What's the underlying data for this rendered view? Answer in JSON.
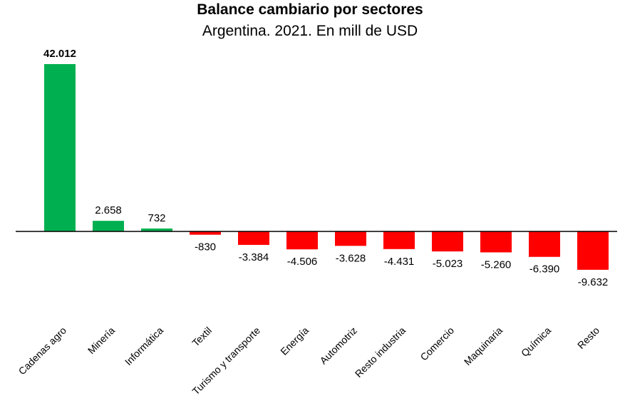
{
  "chart_data": {
    "type": "bar",
    "title": "Balance cambiario por sectores",
    "subtitle": "Argentina. 2021. En mill de USD",
    "categories": [
      "Cadenas agro",
      "Minería",
      "Informática",
      "Textil",
      "Turismo y transporte",
      "Energía",
      "Automotriz",
      "Resto industria",
      "Comercio",
      "Maquinaria",
      "Química",
      "Resto"
    ],
    "values": [
      42012,
      2658,
      732,
      -830,
      -3384,
      -4506,
      -3628,
      -4431,
      -5023,
      -5260,
      -6390,
      -9632
    ],
    "value_labels": [
      "42.012",
      "2.658",
      "732",
      "-830",
      "-3.384",
      "-4.506",
      "-3.628",
      "-4.431",
      "-5.023",
      "-5.260",
      "-6.390",
      "-9.632"
    ],
    "colors": {
      "positive": "#00b050",
      "negative": "#ff0000"
    },
    "grid": false,
    "legend": "none"
  }
}
